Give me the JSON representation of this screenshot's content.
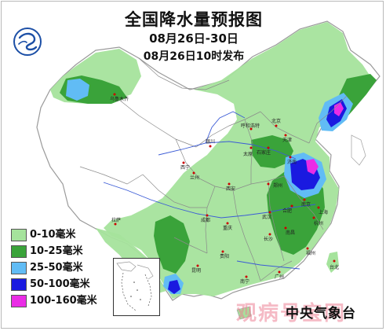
{
  "map": {
    "title": "全国降水量预报图",
    "date_range": "08月26日-30日",
    "issued": "08月26日10时发布",
    "agency": "中央气象台",
    "watermark": "观病号宝网",
    "legend": [
      {
        "label": "0-10毫米",
        "color": "#a5e39c"
      },
      {
        "label": "10-25毫米",
        "color": "#3aa33a"
      },
      {
        "label": "25-50毫米",
        "color": "#61bcf5"
      },
      {
        "label": "50-100毫米",
        "color": "#1a1ae0"
      },
      {
        "label": "100-160毫米",
        "color": "#ea2ce6"
      }
    ],
    "cities": [
      "乌鲁木齐",
      "呼和浩特",
      "北京",
      "天津",
      "石家庄",
      "太原",
      "济南",
      "银川",
      "西宁",
      "兰州",
      "郑州",
      "西安",
      "南京",
      "合肥",
      "武汉",
      "成都",
      "重庆",
      "杭州",
      "长沙",
      "南昌",
      "拉萨",
      "贵阳",
      "昆明",
      "南宁",
      "广州",
      "福州",
      "台北",
      "上海"
    ]
  }
}
